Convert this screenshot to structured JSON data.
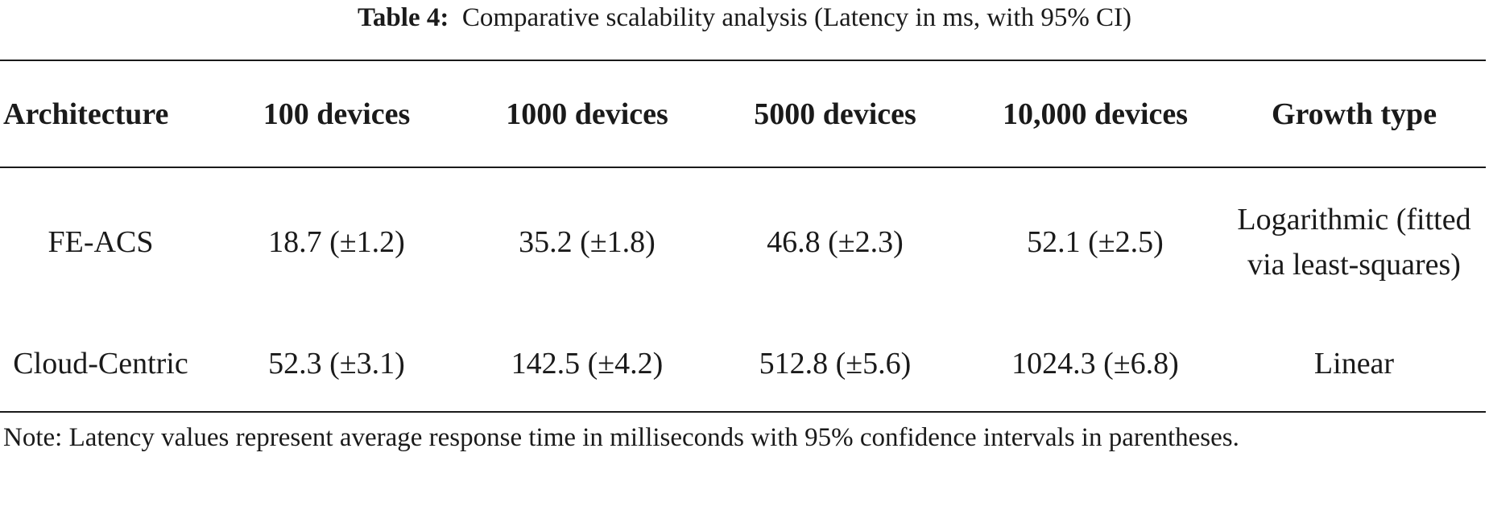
{
  "caption": {
    "label": "Table 4:",
    "text": "Comparative scalability analysis (Latency in ms, with 95% CI)"
  },
  "table": {
    "headers": [
      "Architecture",
      "100 devices",
      "1000 devices",
      "5000 devices",
      "10,000 devices",
      "Growth type"
    ],
    "rows": [
      {
        "architecture": "FE-ACS",
        "d100": "18.7 (±1.2)",
        "d1000": "35.2 (±1.8)",
        "d5000": "46.8 (±2.3)",
        "d10000": "52.1 (±2.5)",
        "growth": "Logarithmic (fitted via least-squares)"
      },
      {
        "architecture": "Cloud-Centric",
        "d100": "52.3 (±3.1)",
        "d1000": "142.5 (±4.2)",
        "d5000": "512.8 (±5.6)",
        "d10000": "1024.3 (±6.8)",
        "growth": "Linear"
      }
    ]
  },
  "note": "Note: Latency values represent average response time in milliseconds with 95% confidence intervals in parentheses."
}
